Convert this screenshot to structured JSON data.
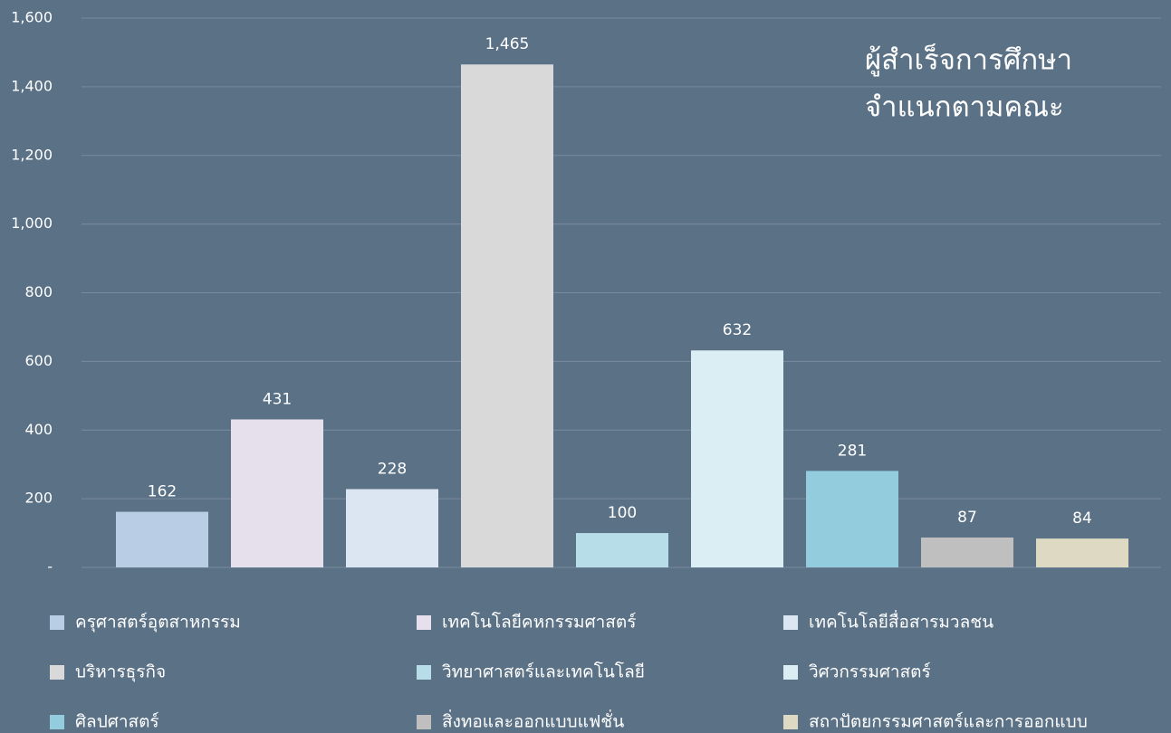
{
  "chart_data": {
    "type": "bar",
    "title": [
      "ผู้สำเร็จการศึกษา",
      "จำแนกตามคณะ"
    ],
    "categories": [
      "ครุศาสตร์อุตสาหกรรม",
      "เทคโนโลยีคหกรรมศาสตร์",
      "เทคโนโลยีสื่อสารมวลชน",
      "บริหารธุรกิจ",
      "วิทยาศาสตร์และเทคโนโลยี",
      "วิศวกรรมศาสตร์",
      "ศิลปศาสตร์",
      "สิ่งทอและออกแบบแฟชั่น",
      "สถาปัตยกรรมศาสตร์และการออกแบบ"
    ],
    "values": [
      162,
      431,
      228,
      1465,
      100,
      632,
      281,
      87,
      84
    ],
    "value_labels": [
      "162",
      "431",
      "228",
      "1,465",
      "100",
      "632",
      "281",
      "87",
      "84"
    ],
    "colors": [
      "#b9cde5",
      "#e6e0ec",
      "#dce6f2",
      "#d9d9d9",
      "#b7dee8",
      "#dbeef4",
      "#93cddd",
      "#bfbfbf",
      "#ddd9c3"
    ],
    "ylim": [
      0,
      1600
    ],
    "yticks": [
      {
        "value": 0,
        "label": "-"
      },
      200,
      400,
      600,
      800,
      {
        "value": 1000,
        "label": "1,000"
      },
      {
        "value": 1200,
        "label": "1,200"
      },
      {
        "value": 1400,
        "label": "1,400"
      },
      {
        "value": 1600,
        "label": "1,600"
      }
    ],
    "grid": true,
    "legend": "bottom"
  }
}
